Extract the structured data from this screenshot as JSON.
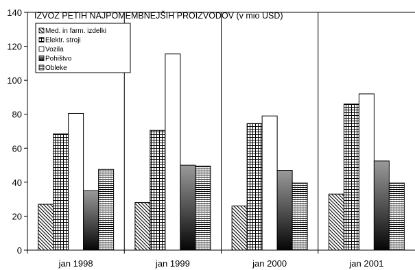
{
  "chart_data": {
    "type": "bar",
    "title": "IZVOZ PETIH NAJPOMEMBNEJŠIH PROIZVODOV (v mio USD)",
    "xlabel": "",
    "ylabel": "",
    "ylim": [
      0,
      140
    ],
    "yticks": [
      0,
      20,
      40,
      60,
      80,
      100,
      120,
      140
    ],
    "categories": [
      "jan 1998",
      "jan 1999",
      "jan 2000",
      "jan 2001"
    ],
    "legend_position": "top-left",
    "grid": "vertical category separators",
    "series": [
      {
        "name": "Med. in farm. izdelki",
        "values": [
          27,
          28,
          26,
          33
        ],
        "pattern": "diagonal"
      },
      {
        "name": "Elektr. stroji",
        "values": [
          68.5,
          70.5,
          74.5,
          86
        ],
        "pattern": "grid"
      },
      {
        "name": "Vozila",
        "values": [
          80.5,
          115.5,
          79,
          92
        ],
        "pattern": "white"
      },
      {
        "name": "Pohištvo",
        "values": [
          35,
          50,
          47,
          52.5
        ],
        "pattern": "gradient"
      },
      {
        "name": "Obleke",
        "values": [
          47.5,
          49.5,
          39.5,
          39.5
        ],
        "pattern": "hstripe"
      }
    ]
  }
}
